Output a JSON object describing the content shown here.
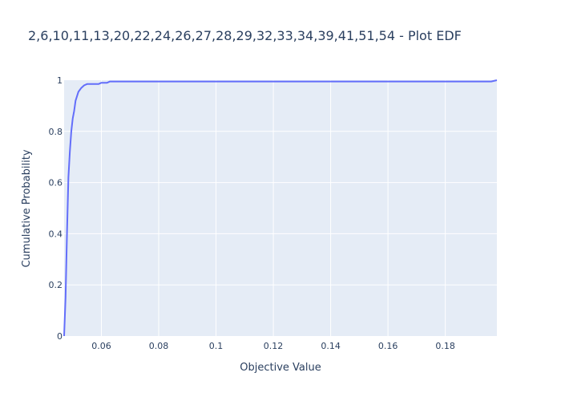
{
  "chart_data": {
    "type": "line",
    "title": "2,6,10,11,13,20,22,24,26,27,28,29,32,33,34,39,41,51,54 - Plot EDF",
    "xlabel": "Objective Value",
    "ylabel": "Cumulative Probability",
    "xlim": [
      0.047,
      0.198
    ],
    "ylim": [
      0,
      1
    ],
    "x_ticks": [
      "0.06",
      "0.08",
      "0.1",
      "0.12",
      "0.14",
      "0.16",
      "0.18"
    ],
    "x_tick_values": [
      0.06,
      0.08,
      0.1,
      0.12,
      0.14,
      0.16,
      0.18
    ],
    "y_ticks": [
      "0",
      "0.2",
      "0.4",
      "0.6",
      "0.8",
      "1"
    ],
    "y_tick_values": [
      0,
      0.2,
      0.4,
      0.6,
      0.8,
      1
    ],
    "grid": true,
    "series": [
      {
        "color": "#636efa",
        "x": [
          0.047,
          0.0475,
          0.048,
          0.0485,
          0.049,
          0.0495,
          0.05,
          0.0505,
          0.051,
          0.052,
          0.053,
          0.054,
          0.055,
          0.056,
          0.058,
          0.059,
          0.06,
          0.062,
          0.063,
          0.064,
          0.068,
          0.1,
          0.15,
          0.196,
          0.198
        ],
        "y": [
          0.0,
          0.15,
          0.4,
          0.62,
          0.72,
          0.8,
          0.85,
          0.88,
          0.92,
          0.955,
          0.97,
          0.98,
          0.985,
          0.985,
          0.985,
          0.985,
          0.99,
          0.99,
          0.995,
          0.995,
          0.995,
          0.995,
          0.995,
          0.995,
          1.0
        ]
      }
    ]
  },
  "colors": {
    "plot_bg": "#e5ecf6",
    "grid": "#ffffff",
    "text": "#2a3f5f"
  }
}
